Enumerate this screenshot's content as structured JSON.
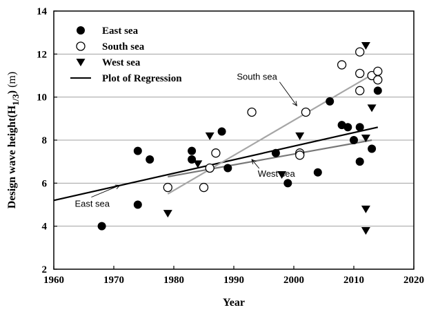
{
  "chart_data": {
    "type": "scatter",
    "title": "",
    "xlabel": "Year",
    "ylabel": "Design wave height(H1/3) (m)",
    "ylabel_parts": {
      "main": "Design wave height(H",
      "subscript": "1/3",
      "close": ")",
      "unit": "(m)"
    },
    "xlim": [
      1960,
      2020
    ],
    "ylim": [
      2,
      14
    ],
    "xticks": [
      "1960",
      "1970",
      "1980",
      "1990",
      "2000",
      "2010",
      "2020"
    ],
    "yticks": [
      "2",
      "4",
      "6",
      "8",
      "10",
      "12",
      "14"
    ],
    "grid": "horizontal",
    "legend": {
      "placement": "top-left",
      "entries": [
        {
          "marker": "filled-circle",
          "label": "East sea"
        },
        {
          "marker": "open-circle",
          "label": "South sea"
        },
        {
          "marker": "down-triangle",
          "label": "West sea"
        },
        {
          "marker": "line",
          "label": "Plot of Regression"
        }
      ]
    },
    "series": [
      {
        "name": "East sea",
        "marker": "filled-circle",
        "color": "#000000",
        "points": [
          [
            1968,
            4.0
          ],
          [
            1974,
            7.5
          ],
          [
            1974,
            5.0
          ],
          [
            1976,
            7.1
          ],
          [
            1983,
            7.5
          ],
          [
            1983,
            7.1
          ],
          [
            1988,
            8.4
          ],
          [
            1989,
            6.7
          ],
          [
            1997,
            7.4
          ],
          [
            1999,
            6.0
          ],
          [
            2004,
            6.5
          ],
          [
            2006,
            9.8
          ],
          [
            2008,
            8.7
          ],
          [
            2009,
            8.6
          ],
          [
            2010,
            8.0
          ],
          [
            2011,
            8.6
          ],
          [
            2011,
            7.0
          ],
          [
            2013,
            7.6
          ],
          [
            2014,
            10.3
          ]
        ]
      },
      {
        "name": "South sea",
        "marker": "open-circle",
        "color": "#000000",
        "points": [
          [
            1979,
            5.8
          ],
          [
            1985,
            5.8
          ],
          [
            1986,
            6.7
          ],
          [
            1987,
            7.4
          ],
          [
            1993,
            9.3
          ],
          [
            2001,
            7.4
          ],
          [
            2001,
            7.3
          ],
          [
            2002,
            9.3
          ],
          [
            2008,
            11.5
          ],
          [
            2011,
            12.1
          ],
          [
            2011,
            11.1
          ],
          [
            2011,
            10.3
          ],
          [
            2013,
            11.0
          ],
          [
            2014,
            11.2
          ],
          [
            2014,
            10.8
          ]
        ]
      },
      {
        "name": "West sea",
        "marker": "down-triangle",
        "color": "#000000",
        "points": [
          [
            1979,
            4.6
          ],
          [
            1984,
            6.9
          ],
          [
            1986,
            8.2
          ],
          [
            1998,
            6.4
          ],
          [
            2001,
            8.2
          ],
          [
            2012,
            12.4
          ],
          [
            2012,
            8.1
          ],
          [
            2012,
            4.8
          ],
          [
            2012,
            3.8
          ],
          [
            2013,
            9.5
          ]
        ]
      }
    ],
    "regression_lines": [
      {
        "label": "East sea",
        "color": "#000000",
        "x": [
          1960,
          2014
        ],
        "y": [
          5.2,
          8.6
        ]
      },
      {
        "label": "South sea",
        "color": "#a6a6a6",
        "x": [
          1979,
          2014
        ],
        "y": [
          5.5,
          11.2
        ]
      },
      {
        "label": "West sea",
        "color": "#777777",
        "x": [
          1979,
          2013
        ],
        "y": [
          6.3,
          8.0
        ]
      }
    ],
    "annotations": [
      {
        "text": "South sea",
        "text_at": [
          1990.5,
          10.8
        ],
        "arrow_to": [
          2000.5,
          9.6
        ]
      },
      {
        "text": "West sea",
        "text_at": [
          1994,
          6.3
        ],
        "arrow_to": [
          1993,
          7.1
        ]
      },
      {
        "text": "East sea",
        "text_at": [
          1963.5,
          4.9
        ],
        "arrow_to": [
          1971,
          5.9
        ]
      }
    ]
  }
}
